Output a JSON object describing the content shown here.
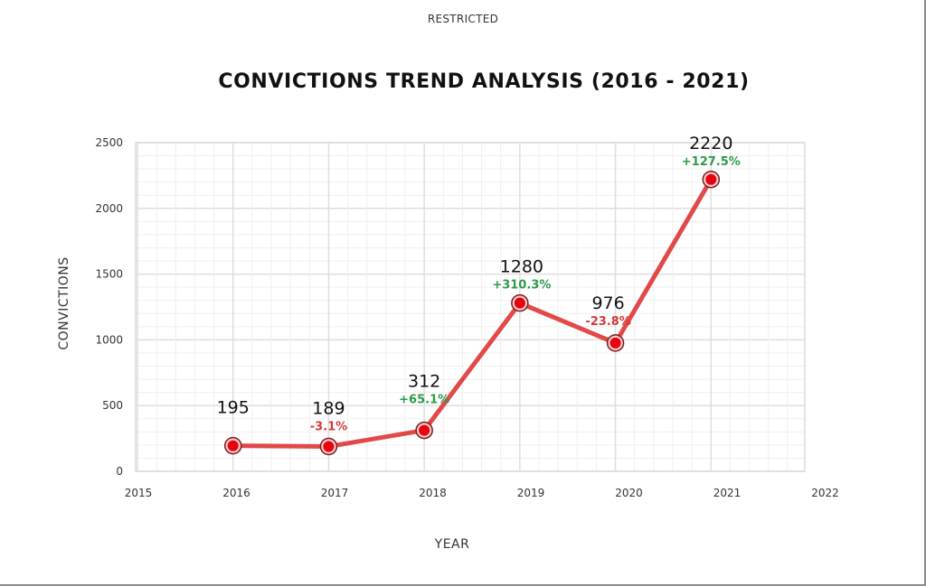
{
  "header": {
    "classification": "RESTRICTED",
    "title": "CONVICTIONS TREND ANALYSIS (2016 - 2021)"
  },
  "colors": {
    "line": "#e03a3a",
    "marker": "#e8000f",
    "positive_change": "#2e9a4a",
    "negative_change": "#d33a3a",
    "grid_major": "#dedede",
    "grid_minor": "#efefef"
  },
  "chart_data": {
    "type": "line",
    "title": "CONVICTIONS TREND ANALYSIS (2016 - 2021)",
    "xlabel": "YEAR",
    "ylabel": "CONVICTIONS",
    "x": [
      2016,
      2017,
      2018,
      2019,
      2020,
      2021
    ],
    "values": [
      195,
      189,
      312,
      1280,
      976,
      2220
    ],
    "change_labels": [
      "",
      "-3.1%",
      "+65.1%",
      "+310.3%",
      "-23.8%",
      "+127.5%"
    ],
    "xlim": [
      2015,
      2022
    ],
    "ylim": [
      0,
      2500
    ],
    "x_ticks": [
      "2015",
      "2016",
      "2017",
      "2018",
      "2019",
      "2020",
      "2021",
      "2022"
    ],
    "y_ticks": [
      "0",
      "500",
      "1000",
      "1500",
      "2000",
      "2500"
    ],
    "grid": true,
    "legend": "none"
  }
}
